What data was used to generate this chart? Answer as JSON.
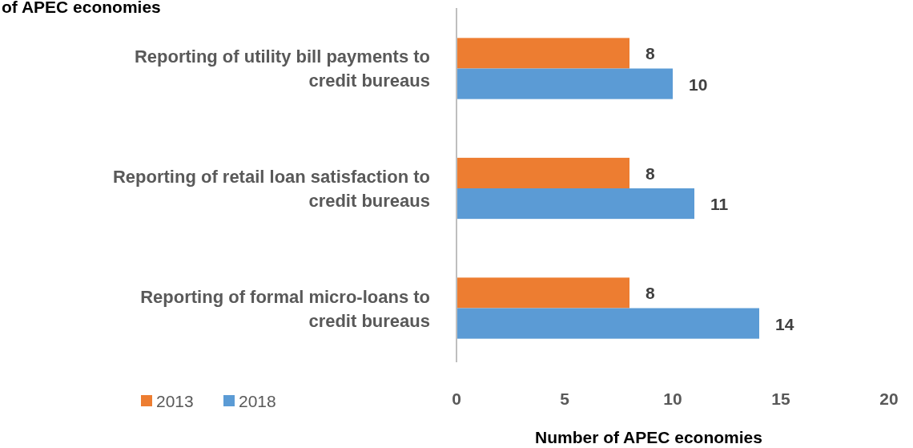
{
  "chart_data": {
    "type": "bar",
    "orientation": "horizontal",
    "title": "of APEC economies",
    "xlabel": "Number of APEC economies",
    "categories": [
      "Reporting of utility bill payments to credit bureaus",
      "Reporting of retail loan satisfaction to credit bureaus",
      "Reporting of formal micro-loans to credit bureaus"
    ],
    "series": [
      {
        "name": "2013",
        "color": "#ed7d31",
        "values": [
          8,
          8,
          8
        ]
      },
      {
        "name": "2018",
        "color": "#5b9bd5",
        "values": [
          10,
          11,
          14
        ]
      }
    ],
    "xlim": [
      0,
      20
    ],
    "xticks": [
      0,
      5,
      10,
      15,
      20
    ],
    "data_labels": true,
    "legend": "bottom left",
    "grid": false
  }
}
